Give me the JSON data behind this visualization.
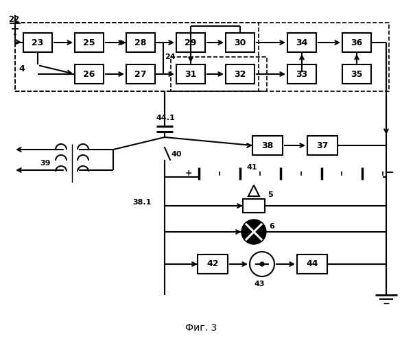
{
  "title": "Фиг. 3",
  "bg": "#ffffff",
  "fw": 5.86,
  "fh": 5.0,
  "dpi": 100
}
